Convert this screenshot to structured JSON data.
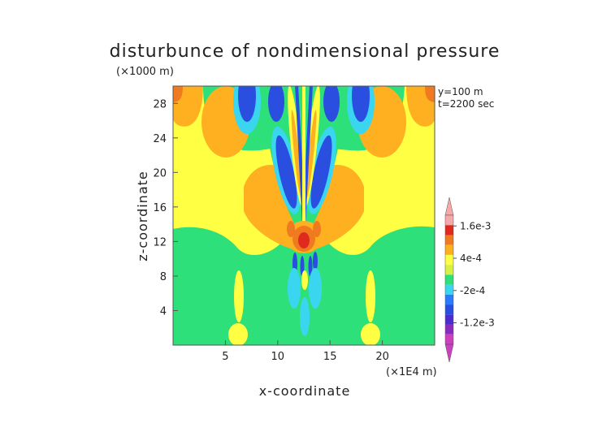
{
  "chart_data": {
    "type": "heatmap",
    "title": "disturbunce of nondimensional pressure",
    "xlabel": "x-coordinate",
    "ylabel": "z-coordinate",
    "x_unit": "(×1E4 m)",
    "y_unit": "(×1000 m)",
    "annotations": [
      "y=100 m",
      "t=2200 sec"
    ],
    "xlim": [
      0,
      25
    ],
    "ylim": [
      0,
      30
    ],
    "x_ticks": [
      5,
      10,
      15,
      20
    ],
    "x_tick_labels": [
      "5",
      "10",
      "15",
      "20"
    ],
    "y_ticks": [
      4,
      8,
      12,
      16,
      20,
      24,
      28
    ],
    "y_tick_labels": [
      "4",
      "8",
      "12",
      "16",
      "20",
      "24",
      "28"
    ],
    "colorbar": {
      "levels": [
        -0.002,
        -0.0016,
        -0.0012,
        -0.0008,
        -0.0004,
        -0.0002,
        0,
        0.0002,
        0.0004,
        0.0008,
        0.0012,
        0.0016,
        0.002
      ],
      "colors": [
        "#cc3fbf",
        "#8a2bc0",
        "#4b2ccf",
        "#2a4fe0",
        "#2a7bff",
        "#3ad6f0",
        "#2ee07a",
        "#d8f040",
        "#ffff44",
        "#ffb020",
        "#f07a20",
        "#e02a20",
        "#f7a8a8"
      ],
      "labels": [
        {
          "value": 0.0016,
          "text": "1.6e-3"
        },
        {
          "value": 0.0004,
          "text": "4e-4"
        },
        {
          "value": -0.0002,
          "text": "-2e-4"
        },
        {
          "value": -0.0012,
          "text": "-1.2e-3"
        }
      ],
      "extend": "both"
    },
    "regions": [
      {
        "name": "background",
        "level": "green",
        "note": "near zero below z≈13 (×1000 m)"
      },
      {
        "name": "upper-band",
        "level": "yellow",
        "note": "weak positive above z≈13"
      },
      {
        "name": "central-plume",
        "note": "alternating positive/negative tilted bands centered at x≈12.5, z 9–30"
      }
    ]
  }
}
